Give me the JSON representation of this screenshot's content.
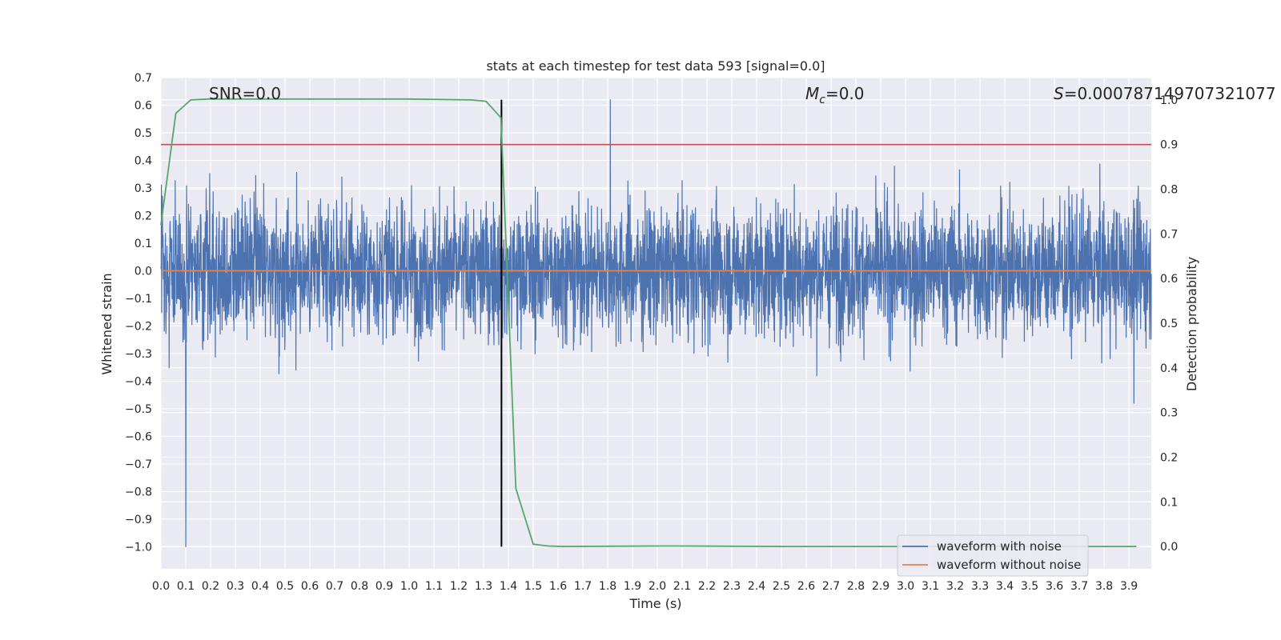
{
  "chart_data": {
    "type": "line",
    "title": "stats at each timestep for test data 593 [signal=0.0]",
    "xlabel": "Time (s)",
    "ylabel": "Whitened strain",
    "y2label": "Detection probability",
    "xlim": [
      0.0,
      3.99
    ],
    "ylim": [
      -1.08,
      0.7
    ],
    "y2lim": [
      -0.05,
      1.05
    ],
    "grid": true,
    "x_ticks": [
      0.0,
      0.1,
      0.2,
      0.3,
      0.4,
      0.5,
      0.6,
      0.7,
      0.8,
      0.9,
      1.0,
      1.1,
      1.2,
      1.3,
      1.4,
      1.5,
      1.6,
      1.7,
      1.8,
      1.9,
      2.0,
      2.1,
      2.2,
      2.3,
      2.4,
      2.5,
      2.6,
      2.7,
      2.8,
      2.9,
      3.0,
      3.1,
      3.2,
      3.3,
      3.4,
      3.5,
      3.6,
      3.7,
      3.8,
      3.9
    ],
    "x_tick_labels": [
      "0.0",
      "0.1",
      "0.2",
      "0.3",
      "0.4",
      "0.5",
      "0.6",
      "0.7",
      "0.8",
      "0.9",
      "1.0",
      "1.1",
      "1.2",
      "1.3",
      "1.4",
      "1.5",
      "1.6",
      "1.7",
      "1.8",
      "1.9",
      "2.0",
      "2.1",
      "2.2",
      "2.3",
      "2.4",
      "2.5",
      "2.6",
      "2.7",
      "2.8",
      "2.9",
      "3.0",
      "3.1",
      "3.2",
      "3.3",
      "3.4",
      "3.5",
      "3.6",
      "3.7",
      "3.8",
      "3.9"
    ],
    "y_ticks": [
      0.7,
      0.6,
      0.5,
      0.4,
      0.3,
      0.2,
      0.1,
      0.0,
      -0.1,
      -0.2,
      -0.3,
      -0.4,
      -0.5,
      -0.6,
      -0.7,
      -0.8,
      -0.9,
      -1.0
    ],
    "y_tick_labels": [
      "0.7",
      "0.6",
      "0.5",
      "0.4",
      "0.3",
      "0.2",
      "0.1",
      "0.0",
      "−0.1",
      "−0.2",
      "−0.3",
      "−0.4",
      "−0.5",
      "−0.6",
      "−0.7",
      "−0.8",
      "−0.9",
      "−1.0"
    ],
    "y2_ticks": [
      1.0,
      0.9,
      0.8,
      0.7,
      0.6,
      0.5,
      0.4,
      0.3,
      0.2,
      0.1,
      0.0
    ],
    "y2_tick_labels": [
      "1.0",
      "0.9",
      "0.8",
      "0.7",
      "0.6",
      "0.5",
      "0.4",
      "0.3",
      "0.2",
      "0.1",
      "0.0"
    ],
    "annotations": {
      "snr": "SNR=0.0",
      "mc_symbol": "M",
      "mc_sub": "c",
      "mc_value": "=0.0",
      "s_symbol": "S",
      "s_value": "=0.000787149707321077"
    },
    "series": [
      {
        "name": "waveform with noise",
        "color": "#4c72b0",
        "axis": "left",
        "kind": "noise",
        "sample_count": 4096,
        "amplitude_range": [
          -1.0,
          0.62
        ],
        "notable_peaks": [
          {
            "x": 0.1,
            "y": -1.0
          },
          {
            "x": 1.81,
            "y": 0.62
          },
          {
            "x": 3.92,
            "y": -0.48
          }
        ]
      },
      {
        "name": "waveform without noise",
        "color": "#dd8452",
        "axis": "left",
        "x": [
          0.0,
          3.99
        ],
        "y": [
          0.0,
          0.0
        ]
      },
      {
        "name": "detection probability",
        "color": "#55a868",
        "axis": "right",
        "x": [
          0.0,
          0.06,
          0.12,
          0.19,
          0.5,
          1.0,
          1.25,
          1.31,
          1.37,
          1.43,
          1.5,
          1.56,
          1.62,
          2.0,
          2.1,
          2.5,
          3.0,
          3.5,
          3.93
        ],
        "y": [
          0.72,
          0.97,
          1.0,
          1.002,
          1.002,
          1.002,
          1.0,
          0.997,
          0.96,
          0.13,
          0.005,
          0.001,
          0.0,
          0.001,
          0.001,
          0.0,
          0.0,
          0.0,
          0.0
        ]
      }
    ],
    "reference_lines": [
      {
        "name": "threshold",
        "axis": "right",
        "orientation": "horizontal",
        "value": 0.9,
        "color": "#c44e52"
      },
      {
        "name": "event marker",
        "axis": "left",
        "orientation": "vertical",
        "value": 1.372,
        "y_range": [
          -1.0,
          0.62
        ],
        "color": "#000000"
      }
    ],
    "legend": {
      "position": "bottom-right",
      "entries": [
        "waveform with noise",
        "waveform without noise"
      ]
    }
  }
}
